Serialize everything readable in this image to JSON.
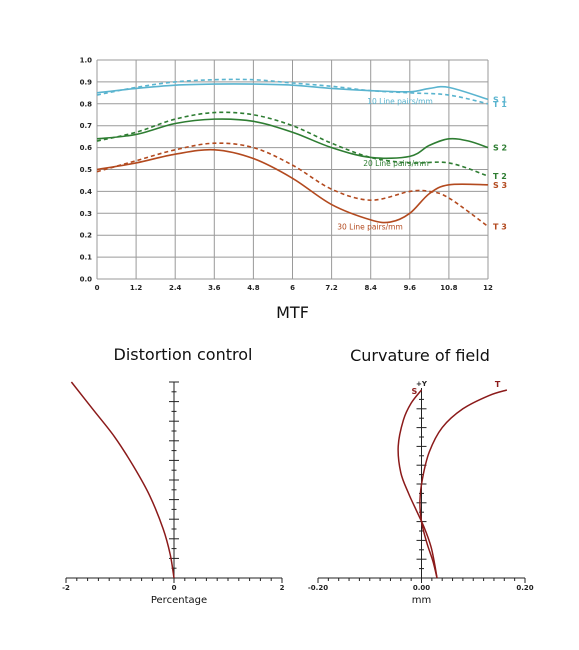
{
  "chart_data": [
    {
      "type": "line",
      "title": "MTF",
      "xticks": [
        "0",
        "1.2",
        "2.4",
        "3.6",
        "4.8",
        "6",
        "7.2",
        "8.4",
        "9.6",
        "10.8",
        "12"
      ],
      "yticks": [
        "0.0",
        "0.1",
        "0.2",
        "0.3",
        "0.4",
        "0.5",
        "0.6",
        "0.7",
        "0.8",
        "0.9",
        "1.0"
      ],
      "xlim": [
        0,
        12
      ],
      "ylim": [
        0,
        1.0
      ],
      "grid": true,
      "annotations": [
        "10 Line pairs/mm",
        "20 Line pairs/mm",
        "30 Line pairs/mm"
      ],
      "series": [
        {
          "name": "S 1",
          "color": "#5ab4cf",
          "dash": false,
          "x": [
            0,
            1.2,
            2.4,
            3.6,
            4.8,
            6,
            7.2,
            8.4,
            9.6,
            10.2,
            10.8,
            12
          ],
          "y": [
            0.85,
            0.87,
            0.885,
            0.89,
            0.89,
            0.885,
            0.87,
            0.86,
            0.855,
            0.87,
            0.875,
            0.82
          ]
        },
        {
          "name": "T 1",
          "color": "#5ab4cf",
          "dash": true,
          "x": [
            0,
            1.2,
            2.4,
            3.6,
            4.8,
            6,
            7.2,
            8.4,
            9.6,
            10.8,
            12
          ],
          "y": [
            0.84,
            0.875,
            0.9,
            0.91,
            0.91,
            0.895,
            0.88,
            0.86,
            0.85,
            0.84,
            0.8
          ]
        },
        {
          "name": "S 2",
          "color": "#2e7d32",
          "dash": false,
          "x": [
            0,
            1.2,
            2.4,
            3.6,
            4.8,
            6,
            7.2,
            8.4,
            9.6,
            10.2,
            10.8,
            11.4,
            12
          ],
          "y": [
            0.64,
            0.66,
            0.71,
            0.73,
            0.72,
            0.67,
            0.6,
            0.555,
            0.56,
            0.61,
            0.64,
            0.63,
            0.6
          ]
        },
        {
          "name": "T 2",
          "color": "#2e7d32",
          "dash": true,
          "x": [
            0,
            1.2,
            2.4,
            3.6,
            4.8,
            6,
            7.2,
            8.4,
            9.6,
            10.8,
            12
          ],
          "y": [
            0.63,
            0.67,
            0.73,
            0.76,
            0.75,
            0.7,
            0.62,
            0.555,
            0.53,
            0.53,
            0.47
          ]
        },
        {
          "name": "S 3",
          "color": "#b34a1f",
          "dash": false,
          "x": [
            0,
            1.2,
            2.4,
            3.6,
            4.8,
            6,
            7.2,
            8.4,
            9.0,
            9.6,
            10.2,
            10.8,
            12
          ],
          "y": [
            0.5,
            0.53,
            0.57,
            0.59,
            0.55,
            0.46,
            0.34,
            0.27,
            0.26,
            0.3,
            0.39,
            0.43,
            0.43
          ]
        },
        {
          "name": "T 3",
          "color": "#b34a1f",
          "dash": true,
          "x": [
            0,
            1.2,
            2.4,
            3.6,
            4.8,
            6,
            7.2,
            8.4,
            9.6,
            10.2,
            10.8,
            12
          ],
          "y": [
            0.49,
            0.54,
            0.59,
            0.62,
            0.6,
            0.52,
            0.41,
            0.36,
            0.4,
            0.4,
            0.37,
            0.24
          ]
        }
      ]
    },
    {
      "type": "line",
      "title": "Distortion control",
      "xlabel": "Percentage",
      "xticks": [
        "-2",
        "0",
        "2"
      ],
      "xlim": [
        -2,
        2
      ],
      "ylim": [
        0,
        1
      ],
      "grid": false,
      "series": [
        {
          "color": "#8b1a1a",
          "x": [
            -1.9,
            -1.5,
            -1.1,
            -0.75,
            -0.45,
            -0.2,
            -0.07,
            0
          ],
          "y": [
            1.0,
            0.86,
            0.72,
            0.57,
            0.42,
            0.25,
            0.12,
            0.0
          ]
        }
      ]
    },
    {
      "type": "line",
      "title": "Curvature of field",
      "xlabel": "mm",
      "xticks": [
        "-0.20",
        "0.00",
        "0.20"
      ],
      "xlim": [
        -0.2,
        0.2
      ],
      "ylim": [
        0,
        1
      ],
      "grid": false,
      "axis_top_label": "+Y",
      "series": [
        {
          "name": "S",
          "color": "#8b1a1a",
          "x": [
            0.0,
            -0.02,
            -0.035,
            -0.045,
            -0.04,
            -0.025,
            -0.01,
            0.005,
            0.018,
            0.025,
            0.03
          ],
          "y": [
            1.0,
            0.93,
            0.84,
            0.7,
            0.56,
            0.45,
            0.36,
            0.27,
            0.17,
            0.08,
            0.0
          ]
        },
        {
          "name": "T",
          "color": "#8b1a1a",
          "x": [
            0.165,
            0.13,
            0.08,
            0.04,
            0.015,
            0.002,
            -0.003,
            0.0,
            0.01,
            0.022,
            0.03
          ],
          "y": [
            1.0,
            0.97,
            0.9,
            0.8,
            0.67,
            0.53,
            0.41,
            0.3,
            0.19,
            0.09,
            0.0
          ]
        }
      ]
    }
  ]
}
